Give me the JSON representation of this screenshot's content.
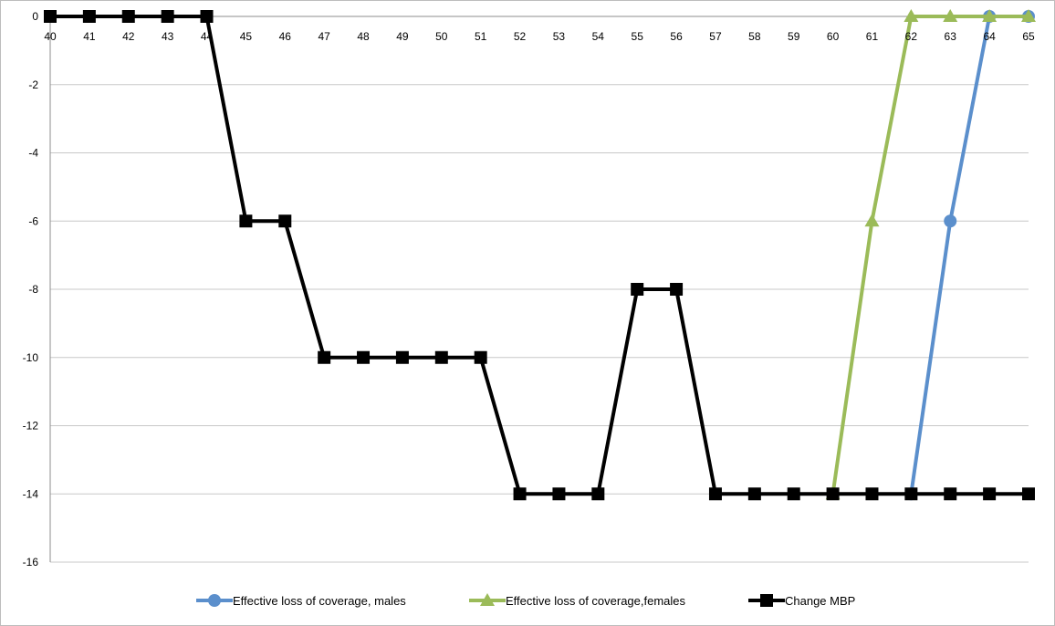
{
  "chart_data": {
    "type": "line",
    "title": "",
    "xlabel": "",
    "ylabel": "",
    "x": [
      40,
      41,
      42,
      43,
      44,
      45,
      46,
      47,
      48,
      49,
      50,
      51,
      52,
      53,
      54,
      55,
      56,
      57,
      58,
      59,
      60,
      61,
      62,
      63,
      64,
      65
    ],
    "x_tick_labels": [
      "40",
      "41",
      "42",
      "43",
      "44",
      "45",
      "46",
      "47",
      "48",
      "49",
      "50",
      "51",
      "52",
      "53",
      "54",
      "55",
      "56",
      "57",
      "58",
      "59",
      "60",
      "61",
      "62",
      "63",
      "64",
      "65"
    ],
    "ylim": [
      -16,
      0
    ],
    "y_ticks": [
      0,
      -2,
      -4,
      -6,
      -8,
      -10,
      -12,
      -14,
      -16
    ],
    "y_tick_labels": [
      "0",
      "-2",
      "-4",
      "-6",
      "-8",
      "-10",
      "-12",
      "-14",
      "-16"
    ],
    "grid": true,
    "legend_position": "bottom",
    "series": [
      {
        "name": "Effective loss of coverage, males",
        "color": "#5b8fcc",
        "marker": "circle",
        "x": [
          62,
          63,
          64,
          65
        ],
        "values": [
          -14,
          -6,
          0,
          0
        ]
      },
      {
        "name": "Effective loss of coverage,females",
        "color": "#9bbb59",
        "marker": "triangle",
        "x": [
          60,
          61,
          62,
          63,
          64,
          65
        ],
        "values": [
          -14,
          -6,
          0,
          0,
          0,
          0
        ]
      },
      {
        "name": "Change MBP",
        "color": "#000000",
        "marker": "square",
        "x": [
          40,
          41,
          42,
          43,
          44,
          45,
          46,
          47,
          48,
          49,
          50,
          51,
          52,
          53,
          54,
          55,
          56,
          57,
          58,
          59,
          60,
          61,
          62,
          63,
          64,
          65
        ],
        "values": [
          0,
          0,
          0,
          0,
          0,
          -6,
          -6,
          -10,
          -10,
          -10,
          -10,
          -10,
          -14,
          -14,
          -14,
          -8,
          -8,
          -14,
          -14,
          -14,
          -14,
          -14,
          -14,
          -14,
          -14,
          -14
        ]
      }
    ]
  }
}
